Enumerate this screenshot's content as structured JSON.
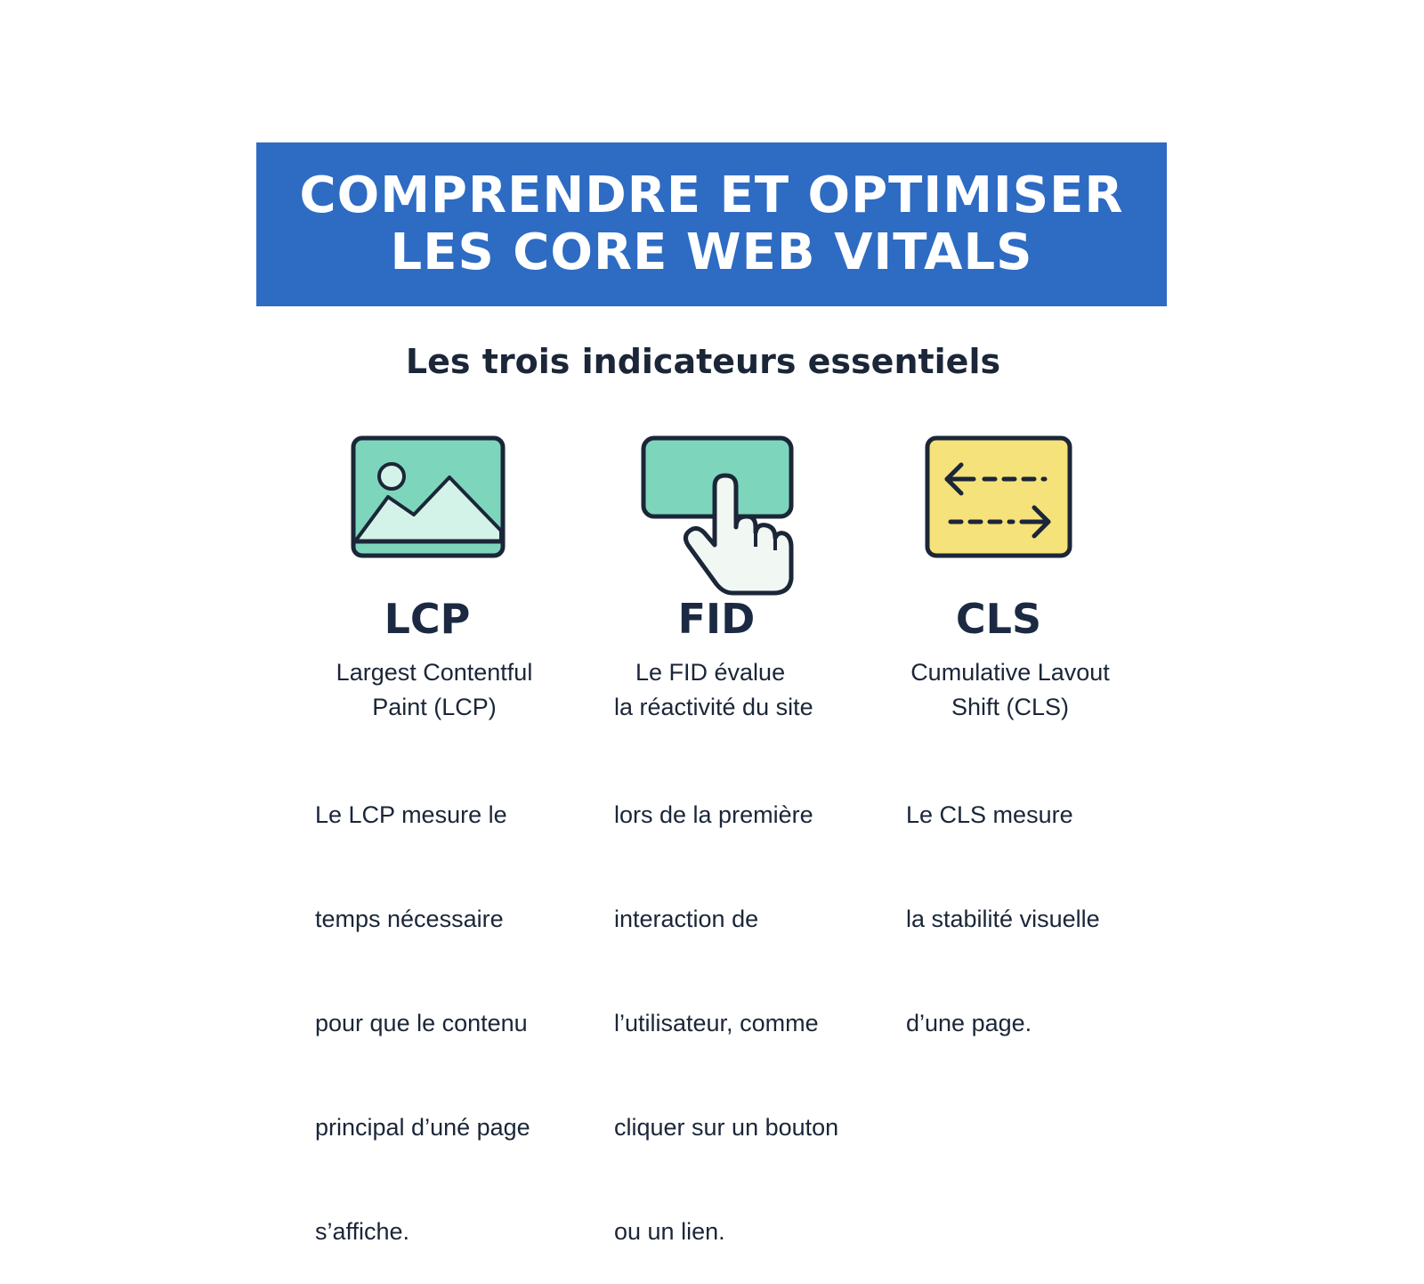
{
  "banner": {
    "line1": "COMPRENDRE ET OPTIMISER",
    "line2": "LES CORE WEB VITALS"
  },
  "subtitle": "Les trois indicateurs essentiels",
  "colors": {
    "banner": "#2e6bc3",
    "teal": "#7dd6bb",
    "yellow": "#f6e27a",
    "dark": "#1b2638"
  },
  "metrics": [
    {
      "icon": "image-icon",
      "abbr": "LCP",
      "name": [
        "Largest Contentful",
        "Paint (LCP)"
      ],
      "desc": [
        "Le LCP mesure le",
        "temps nécessaire",
        "pour que le contenu",
        "principal d’uné page",
        "s’affiche."
      ]
    },
    {
      "icon": "pointer-click-icon",
      "abbr": "FID",
      "name": [
        "Le FID évalue",
        "la réactivité du site"
      ],
      "desc": [
        "lors de la première",
        "interaction de",
        "l’utilisateur, comme",
        "cliquer sur un bouton",
        "ou un lien."
      ]
    },
    {
      "icon": "layout-shift-arrows-icon",
      "abbr": "CLS",
      "name": [
        "Cumulative Lavout",
        "Shift (CLS)"
      ],
      "desc": [
        "Le CLS mesure",
        "la stabilité visuelle",
        "d’une page."
      ]
    }
  ]
}
